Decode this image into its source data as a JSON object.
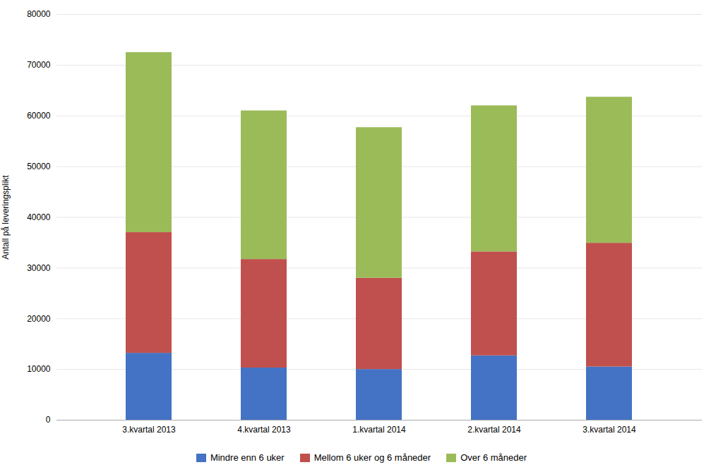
{
  "chart_data": {
    "type": "bar",
    "stacked": true,
    "categories": [
      "3.kvartal 2013",
      "4.kvartal 2013",
      "1.kvartal 2014",
      "2.kvartal 2014",
      "3.kvartal 2014"
    ],
    "series": [
      {
        "name": "Mindre enn 6 uker",
        "color": "#4472C4",
        "values": [
          13200,
          10300,
          10000,
          12700,
          10500
        ]
      },
      {
        "name": "Mellom 6 uker og 6 måneder",
        "color": "#C0504D",
        "values": [
          23800,
          21400,
          18000,
          20500,
          24400
        ]
      },
      {
        "name": "Over 6 måneder",
        "color": "#9BBB59",
        "values": [
          35500,
          29300,
          29700,
          28800,
          28800
        ]
      }
    ],
    "ylabel": "Antall på leveringsplikt",
    "ylim": [
      0,
      80000
    ],
    "yticks": [
      0,
      10000,
      20000,
      30000,
      40000,
      50000,
      60000,
      70000,
      80000
    ],
    "grid": true,
    "legend": "bottom"
  }
}
